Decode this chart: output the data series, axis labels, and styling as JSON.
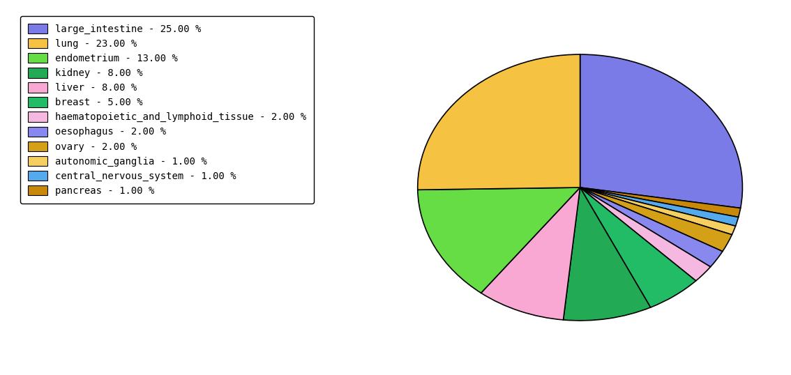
{
  "labels": [
    "large_intestine",
    "lung",
    "endometrium",
    "kidney",
    "liver",
    "breast",
    "haematopoietic_and_lymphoid_tissue",
    "oesophagus",
    "ovary",
    "autonomic_ganglia",
    "central_nervous_system",
    "pancreas"
  ],
  "values": [
    25,
    23,
    13,
    8,
    8,
    5,
    2,
    2,
    2,
    1,
    1,
    1
  ],
  "colors": [
    "#7b7be8",
    "#f5c242",
    "#66dd44",
    "#22aa55",
    "#f9a8d4",
    "#22bb66",
    "#f5b8e0",
    "#8888ee",
    "#d4a017",
    "#f5d060",
    "#55aaee",
    "#c8880a"
  ],
  "legend_labels": [
    "large_intestine - 25.00 %",
    "lung - 23.00 %",
    "endometrium - 13.00 %",
    "kidney - 8.00 %",
    "liver - 8.00 %",
    "breast - 5.00 %",
    "haematopoietic_and_lymphoid_tissue - 2.00 %",
    "oesophagus - 2.00 %",
    "ovary - 2.00 %",
    "autonomic_ganglia - 1.00 %",
    "central_nervous_system - 1.00 %",
    "pancreas - 1.00 %"
  ],
  "pie_order": [
    0,
    11,
    10,
    9,
    8,
    7,
    6,
    5,
    3,
    4,
    2,
    1
  ],
  "startangle": 90,
  "figsize": [
    11.34,
    5.38
  ],
  "dpi": 100
}
